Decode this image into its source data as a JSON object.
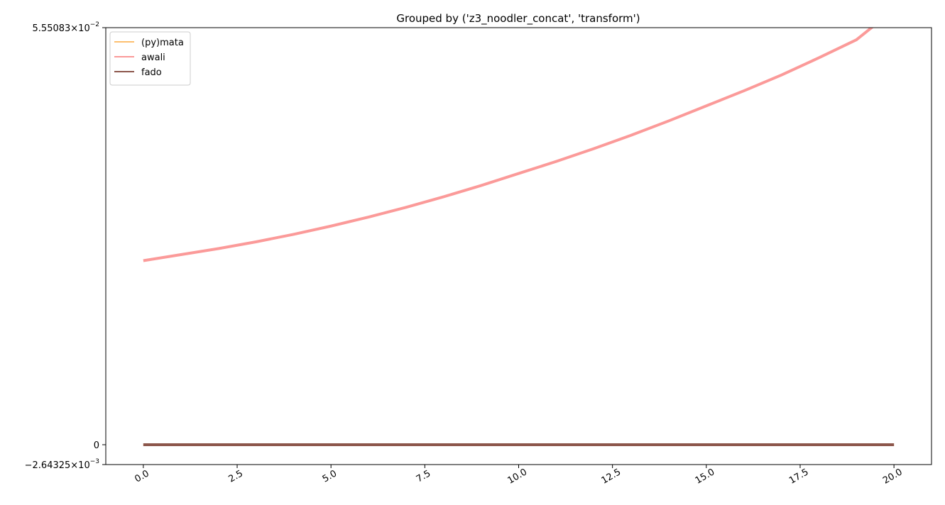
{
  "chart_data": {
    "type": "line",
    "title": "Grouped by ('z3_noodler_concat', 'transform')",
    "xlabel": "",
    "ylabel": "",
    "xlim": [
      -1.0,
      21.0
    ],
    "ylim": [
      -0.00264325,
      0.0555083
    ],
    "x_ticks": [
      0,
      2.5,
      5,
      7.5,
      10,
      12.5,
      15,
      17.5,
      20
    ],
    "x_tick_labels": [
      "0.0",
      "2.5",
      "5.0",
      "7.5",
      "10.0",
      "12.5",
      "15.0",
      "17.5",
      "20.0"
    ],
    "y_ticks": [
      {
        "value": 0.0555083,
        "mantissa": "5.55083",
        "exponent": "−2",
        "plain": ""
      },
      {
        "value": 0,
        "mantissa": "",
        "exponent": "",
        "plain": "0"
      },
      {
        "value": -0.00264325,
        "mantissa": "−2.64325",
        "exponent": "−3",
        "plain": ""
      }
    ],
    "grid": false,
    "legend_position": "top-left",
    "x": [
      0,
      1,
      2,
      3,
      4,
      5,
      6,
      7,
      8,
      9,
      10,
      11,
      12,
      13,
      14,
      15,
      16,
      17,
      18,
      19,
      20
    ],
    "series": [
      {
        "name": "(py)mata",
        "color": "#fdbf6f",
        "values": [
          0,
          0,
          0,
          0,
          0,
          0,
          0,
          0,
          0,
          0,
          0,
          0,
          0,
          0,
          0,
          0,
          0,
          0,
          0,
          0,
          0
        ]
      },
      {
        "name": "awali",
        "color": "#fb9a99",
        "values": [
          0.0245,
          0.0253,
          0.0261,
          0.027,
          0.028,
          0.0291,
          0.0303,
          0.0316,
          0.033,
          0.0345,
          0.0361,
          0.0377,
          0.0394,
          0.0412,
          0.0431,
          0.0451,
          0.0471,
          0.0492,
          0.0515,
          0.0539,
          0.0579
        ]
      },
      {
        "name": "fado",
        "color": "#8c564b",
        "values": [
          0,
          0,
          0,
          0,
          0,
          0,
          0,
          0,
          0,
          0,
          0,
          0,
          0,
          0,
          0,
          0,
          0,
          0,
          0,
          0,
          0
        ]
      }
    ]
  }
}
